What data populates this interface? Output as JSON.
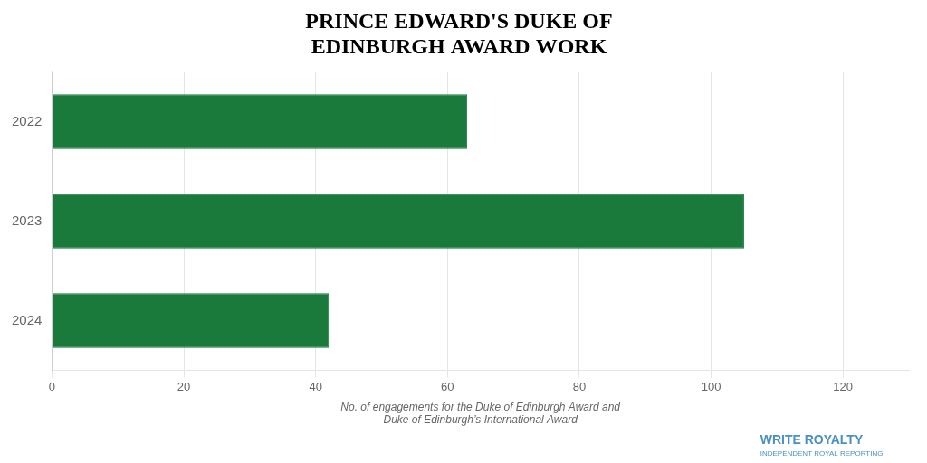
{
  "chart_data": {
    "type": "bar",
    "orientation": "horizontal",
    "title": "PRINCE EDWARD'S DUKE OF\nEDINBURGH AWARD WORK",
    "categories": [
      "2024",
      "2023",
      "2022"
    ],
    "values": [
      42,
      105,
      63
    ],
    "color": "#1a7a3c",
    "xlabel": "No. of engagements for the Duke of Edinburgh Award and\nDuke of Edinburgh’s International Award",
    "xlim": [
      0,
      130
    ],
    "xticks": [
      0,
      20,
      40,
      60,
      80,
      100,
      120
    ],
    "grid": true,
    "annotations": [
      {
        "text": "WRITE ROYALTY",
        "color": "#4a90c4"
      },
      {
        "text": "INDEPENDENT ROYAL REPORTING",
        "color": "#4a90c4"
      }
    ]
  }
}
